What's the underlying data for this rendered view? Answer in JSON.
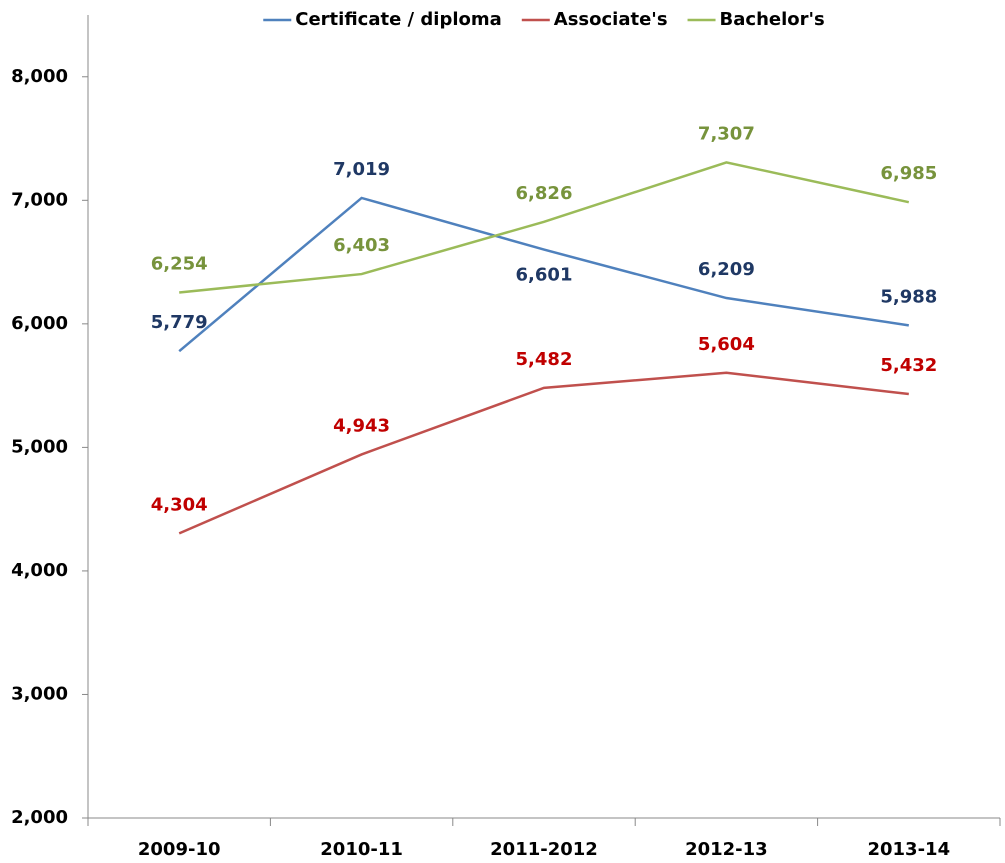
{
  "chart_data": {
    "type": "line",
    "categories": [
      "2009-10",
      "2010-11",
      "2011-2012",
      "2012-13",
      "2013-14"
    ],
    "series": [
      {
        "name": "Certificate / diploma",
        "color": "#4f81bd",
        "label_color": "#1f3864",
        "values": [
          5779,
          7019,
          6601,
          6209,
          5988
        ],
        "value_labels": [
          "5,779",
          "7,019",
          "6,601",
          "6,209",
          "5,988"
        ]
      },
      {
        "name": "Associate's",
        "color": "#c0504d",
        "label_color": "#c00000",
        "values": [
          4304,
          4943,
          5482,
          5604,
          5432
        ],
        "value_labels": [
          "4,304",
          "4,943",
          "5,482",
          "5,604",
          "5,432"
        ]
      },
      {
        "name": "Bachelor's",
        "color": "#9bbb59",
        "label_color": "#77933c",
        "values": [
          6254,
          6403,
          6826,
          7307,
          6985
        ],
        "value_labels": [
          "6,254",
          "6,403",
          "6,826",
          "7,307",
          "6,985"
        ]
      }
    ],
    "ylim": [
      2000,
      8500
    ],
    "yticks": [
      {
        "value": 2000,
        "label": "2,000"
      },
      {
        "value": 3000,
        "label": "3,000"
      },
      {
        "value": 4000,
        "label": "4,000"
      },
      {
        "value": 5000,
        "label": "5,000"
      },
      {
        "value": 6000,
        "label": "6,000"
      },
      {
        "value": 7000,
        "label": "7,000"
      },
      {
        "value": 8000,
        "label": "8,000"
      }
    ],
    "legend": "top"
  }
}
